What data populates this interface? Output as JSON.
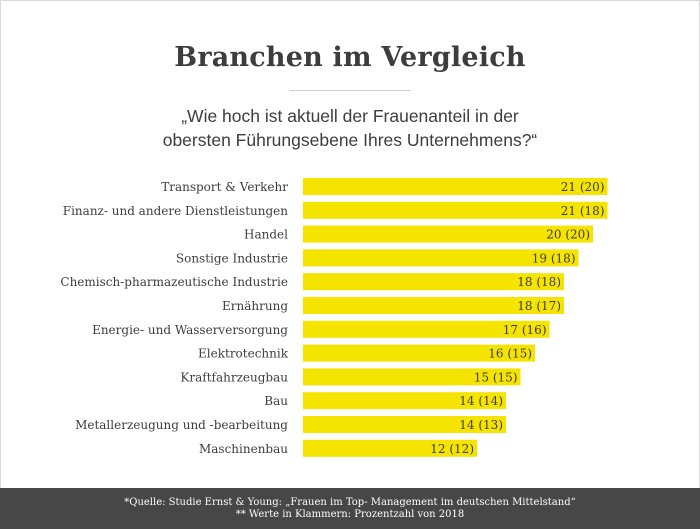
{
  "title": "Branchen im Vergleich",
  "subtitle": {
    "line1": "„Wie hoch ist aktuell der Frauenanteil in der",
    "line2": "obersten Führungsebene Ihres Unternehmens?“"
  },
  "colors": {
    "bar": "#f5e300",
    "text": "#3d3d3d",
    "footer_bg": "#474747"
  },
  "chart_data": {
    "type": "bar",
    "orientation": "horizontal",
    "categories": [
      "Transport & Verkehr",
      "Finanz- und andere Dienstleistungen",
      "Handel",
      "Sonstige Industrie",
      "Chemisch-pharmazeutische Industrie",
      "Ernährung",
      "Energie- und Wasserversorgung",
      "Elektrotechnik",
      "Kraftfahrzeugbau",
      "Bau",
      "Metallerzeugung und -bearbeitung",
      "Maschinenbau"
    ],
    "values": [
      21,
      21,
      20,
      19,
      18,
      18,
      17,
      16,
      15,
      14,
      14,
      12
    ],
    "previous_values": [
      20,
      18,
      20,
      18,
      18,
      17,
      16,
      15,
      15,
      14,
      13,
      12
    ],
    "labels": [
      "21 (20)",
      "21 (18)",
      "20 (20)",
      "19 (18)",
      "18 (18)",
      "18 (17)",
      "17 (16)",
      "16 (15)",
      "15 (15)",
      "14 (14)",
      "14 (13)",
      "12 (12)"
    ],
    "grid": false,
    "legend": "none"
  },
  "footer": {
    "line1": "*Quelle: Studie Ernst & Young: „Frauen im Top- Management im deutschen Mittelstand“",
    "line2": "** Werte in Klammern: Prozentzahl von 2018"
  }
}
